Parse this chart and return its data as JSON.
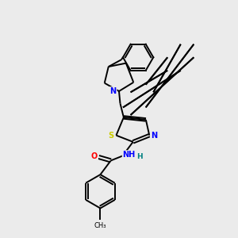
{
  "background_color": "#ebebeb",
  "bond_color": "#000000",
  "atom_colors": {
    "N": "#0000ff",
    "O": "#ff0000",
    "S": "#cccc00",
    "C": "#000000",
    "H": "#008080"
  },
  "figsize": [
    3.0,
    3.0
  ],
  "dpi": 100,
  "lw": 1.4,
  "fs": 7.0
}
